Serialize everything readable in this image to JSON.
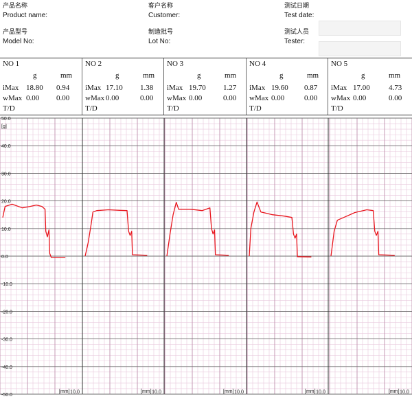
{
  "header": {
    "product_name_cn": "产品名称",
    "product_name_en": "Product name:",
    "model_cn": "产品型号",
    "model_en": "Model No:",
    "customer_cn": "客户名称",
    "customer_en": "Customer:",
    "lot_cn": "制造批号",
    "lot_en": "Lot No:",
    "testdate_cn": "测试日期",
    "testdate_en": "Test date:",
    "tester_cn": "测试人员",
    "tester_en": "Tester:"
  },
  "samples": [
    {
      "label": "NO  1",
      "unit_g": "g",
      "unit_mm": "mm",
      "imax_label": "iMax",
      "imax_g": "18.80",
      "imax_mm": "0.94",
      "wmax_label": "wMax",
      "wmax_g": "0.00",
      "wmax_mm": "0.00",
      "td_label": "T/D"
    },
    {
      "label": "NO  2",
      "unit_g": "g",
      "unit_mm": "mm",
      "imax_label": "iMax",
      "imax_g": "17.10",
      "imax_mm": "1.38",
      "wmax_label": "wMax",
      "wmax_g": "0.00",
      "wmax_mm": "0.00",
      "td_label": "T/D"
    },
    {
      "label": "NO  3",
      "unit_g": "g",
      "unit_mm": "mm",
      "imax_label": "iMax",
      "imax_g": "19.70",
      "imax_mm": "1.27",
      "wmax_label": "wMax",
      "wmax_g": "0.00",
      "wmax_mm": "0.00",
      "td_label": "T/D"
    },
    {
      "label": "NO  4",
      "unit_g": "g",
      "unit_mm": "mm",
      "imax_label": "iMax",
      "imax_g": "19.60",
      "imax_mm": "0.87",
      "wmax_label": "wMax",
      "wmax_g": "0.00",
      "wmax_mm": "0.00",
      "td_label": "T/D"
    },
    {
      "label": "NO  5",
      "unit_g": "g",
      "unit_mm": "mm",
      "imax_label": "iMax",
      "imax_g": "17.00",
      "imax_mm": "4.73",
      "wmax_label": "wMax",
      "wmax_g": "0.00",
      "wmax_mm": "0.00",
      "td_label": "T/D"
    }
  ],
  "chart_data": {
    "type": "line",
    "ylabel": "[g]",
    "ylim": [
      -50,
      50
    ],
    "yticks": [
      "50.0",
      "40.0",
      "30.0",
      "20.0",
      "10.0",
      "0.0",
      "-10.0",
      "-20.0",
      "-30.0",
      "-40.0",
      "-50.0"
    ],
    "xunit": "[mm]",
    "xmax_label": "10.0",
    "panel_xlim": [
      0,
      10
    ],
    "grid": true,
    "line_color": "#e8141c",
    "series": [
      {
        "points": [
          [
            0,
            14
          ],
          [
            0.3,
            18
          ],
          [
            1.2,
            18.8
          ],
          [
            2.5,
            17.5
          ],
          [
            3.5,
            18
          ],
          [
            4.3,
            18.5
          ],
          [
            5.0,
            18
          ],
          [
            5.4,
            17
          ],
          [
            5.5,
            9
          ],
          [
            5.7,
            7
          ],
          [
            5.9,
            9.5
          ],
          [
            6.0,
            1
          ],
          [
            6.2,
            -0.5
          ],
          [
            8.0,
            -0.5
          ]
        ]
      },
      {
        "points": [
          [
            0,
            0
          ],
          [
            0.4,
            5
          ],
          [
            0.8,
            12
          ],
          [
            1.0,
            16
          ],
          [
            1.5,
            16.5
          ],
          [
            3,
            16.8
          ],
          [
            4.5,
            16.6
          ],
          [
            5.4,
            16.5
          ],
          [
            5.6,
            9
          ],
          [
            5.8,
            7.5
          ],
          [
            6.0,
            9
          ],
          [
            6.1,
            0.5
          ],
          [
            8.0,
            0.3
          ]
        ]
      },
      {
        "points": [
          [
            0,
            0
          ],
          [
            0.4,
            8
          ],
          [
            0.8,
            15
          ],
          [
            1.2,
            19.5
          ],
          [
            1.5,
            17
          ],
          [
            3,
            17
          ],
          [
            4.5,
            16.5
          ],
          [
            5.5,
            17.5
          ],
          [
            5.7,
            10
          ],
          [
            5.9,
            8
          ],
          [
            6.1,
            9.5
          ],
          [
            6.2,
            0.5
          ],
          [
            7.9,
            0.3
          ]
        ]
      },
      {
        "points": [
          [
            0,
            0
          ],
          [
            0.2,
            10
          ],
          [
            0.6,
            16
          ],
          [
            1.0,
            19.6
          ],
          [
            1.5,
            16
          ],
          [
            3,
            15
          ],
          [
            4.5,
            14.5
          ],
          [
            5.5,
            14
          ],
          [
            5.7,
            8
          ],
          [
            5.9,
            6.5
          ],
          [
            6.1,
            8
          ],
          [
            6.2,
            -0.2
          ],
          [
            8.0,
            -0.3
          ]
        ]
      },
      {
        "points": [
          [
            0,
            0
          ],
          [
            0.4,
            9
          ],
          [
            0.8,
            13
          ],
          [
            1.2,
            13.5
          ],
          [
            2,
            14.5
          ],
          [
            3,
            15.8
          ],
          [
            4.5,
            16.8
          ],
          [
            5.3,
            16.5
          ],
          [
            5.5,
            9
          ],
          [
            5.7,
            7.5
          ],
          [
            5.9,
            9
          ],
          [
            6.0,
            0.5
          ],
          [
            8.0,
            0.3
          ]
        ]
      }
    ]
  }
}
